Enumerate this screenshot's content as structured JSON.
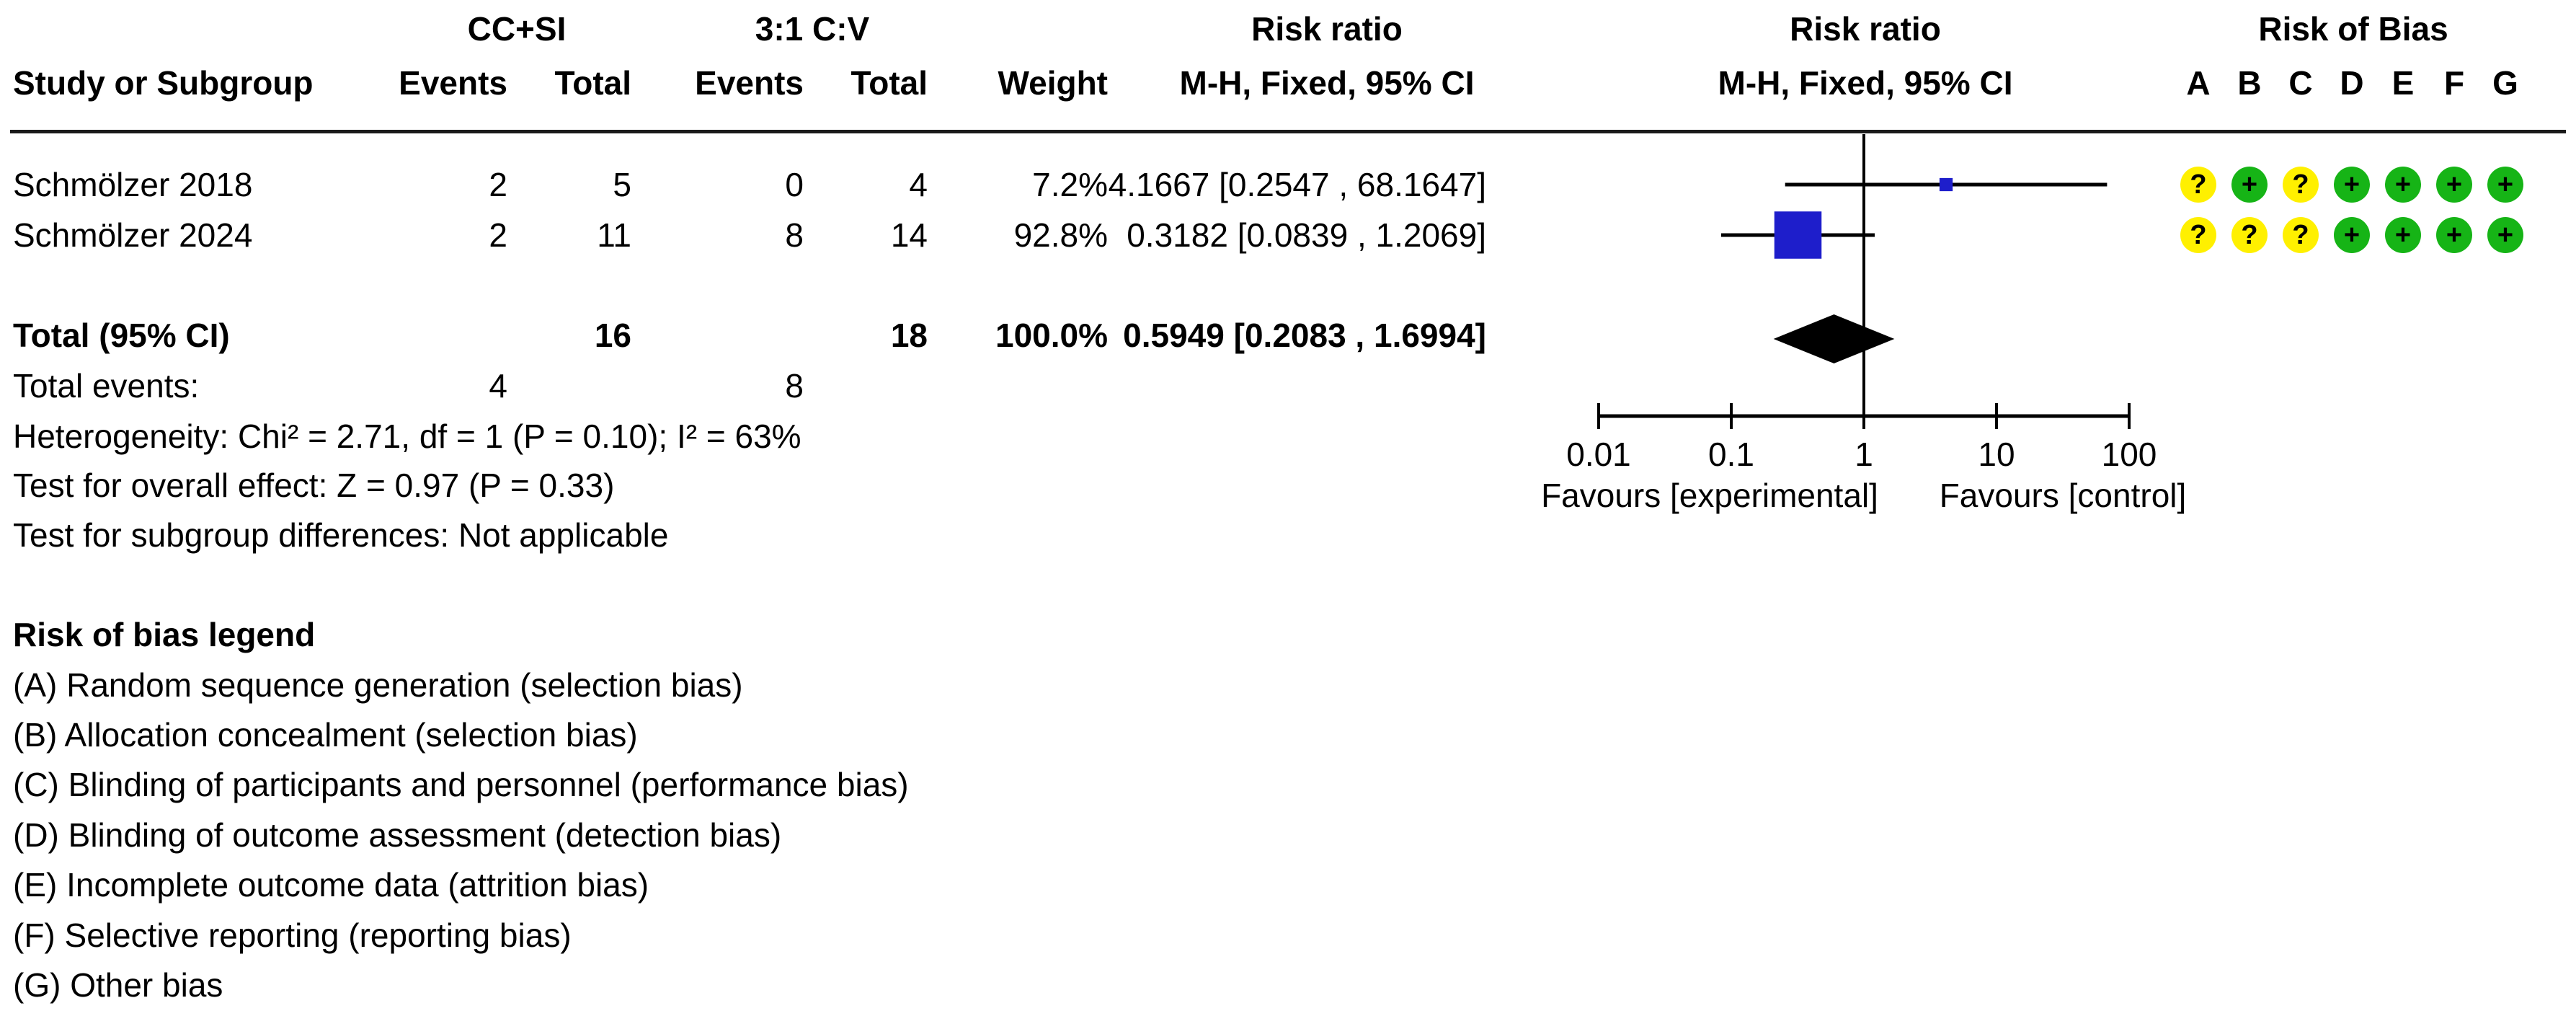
{
  "header": {
    "group1_label": "CC+SI",
    "group2_label": "3:1 C:V",
    "col_study": "Study or Subgroup",
    "col_events": "Events",
    "col_total": "Total",
    "col_weight": "Weight",
    "risk_ratio_title": "Risk ratio",
    "mh_fixed_ci": "M-H, Fixed, 95% CI",
    "risk_of_bias_title": "Risk of Bias",
    "rob_letters": [
      "A",
      "B",
      "C",
      "D",
      "E",
      "F",
      "G"
    ]
  },
  "rows": [
    {
      "study": "Schmölzer 2018",
      "events1": "2",
      "total1": "5",
      "events2": "0",
      "total2": "4",
      "weight": "7.2%",
      "ci_text": "4.1667 [0.2547 , 68.1647]",
      "rob": [
        {
          "color": "yellow",
          "symbol": "?"
        },
        {
          "color": "green",
          "symbol": "+"
        },
        {
          "color": "yellow",
          "symbol": "?"
        },
        {
          "color": "green",
          "symbol": "+"
        },
        {
          "color": "green",
          "symbol": "+"
        },
        {
          "color": "green",
          "symbol": "+"
        },
        {
          "color": "green",
          "symbol": "+"
        }
      ]
    },
    {
      "study": "Schmölzer 2024",
      "events1": "2",
      "total1": "11",
      "events2": "8",
      "total2": "14",
      "weight": "92.8%",
      "ci_text": "0.3182 [0.0839 , 1.2069]",
      "rob": [
        {
          "color": "yellow",
          "symbol": "?"
        },
        {
          "color": "yellow",
          "symbol": "?"
        },
        {
          "color": "yellow",
          "symbol": "?"
        },
        {
          "color": "green",
          "symbol": "+"
        },
        {
          "color": "green",
          "symbol": "+"
        },
        {
          "color": "green",
          "symbol": "+"
        },
        {
          "color": "green",
          "symbol": "+"
        }
      ]
    }
  ],
  "totals": {
    "label": "Total (95% CI)",
    "total1": "16",
    "total2": "18",
    "weight": "100.0%",
    "ci_text": "0.5949 [0.2083 , 1.6994]",
    "events_label": "Total events:",
    "events1": "4",
    "events2": "8"
  },
  "footer": {
    "heterogeneity": "Heterogeneity: Chi² = 2.71, df = 1 (P = 0.10); I² = 63%",
    "overall_effect": "Test for overall effect: Z = 0.97 (P = 0.33)",
    "subgroup_diff": "Test for subgroup differences: Not applicable"
  },
  "axis": {
    "favours_left": "Favours [experimental]",
    "favours_right": "Favours [control]"
  },
  "legend": {
    "title": "Risk of bias legend",
    "items": [
      "(A) Random sequence generation (selection bias)",
      "(B) Allocation concealment (selection bias)",
      "(C) Blinding of participants and personnel (performance bias)",
      "(D) Blinding of outcome assessment (detection bias)",
      "(E) Incomplete outcome data (attrition bias)",
      "(F) Selective reporting (reporting bias)",
      "(G) Other bias"
    ]
  },
  "colors": {
    "marker_blue": "#1e1ecb",
    "rob_yellow": "#fff000",
    "rob_green": "#16b416",
    "line_black": "#000000"
  },
  "chart_data": {
    "type": "forest",
    "scale": "log10",
    "xlim": [
      0.01,
      100
    ],
    "ticks": [
      0.01,
      0.1,
      1,
      10,
      100
    ],
    "tick_labels": [
      "0.01",
      "0.1",
      "1",
      "10",
      "100"
    ],
    "null_line": 1,
    "effect_measure": "Risk ratio (M-H, Fixed, 95% CI)",
    "studies": [
      {
        "name": "Schmölzer 2018",
        "rr": 4.1667,
        "ci": [
          0.2547,
          68.1647
        ],
        "weight": 7.2
      },
      {
        "name": "Schmölzer 2024",
        "rr": 0.3182,
        "ci": [
          0.0839,
          1.2069
        ],
        "weight": 92.8
      }
    ],
    "total": {
      "rr": 0.5949,
      "ci": [
        0.2083,
        1.6994
      ]
    }
  }
}
